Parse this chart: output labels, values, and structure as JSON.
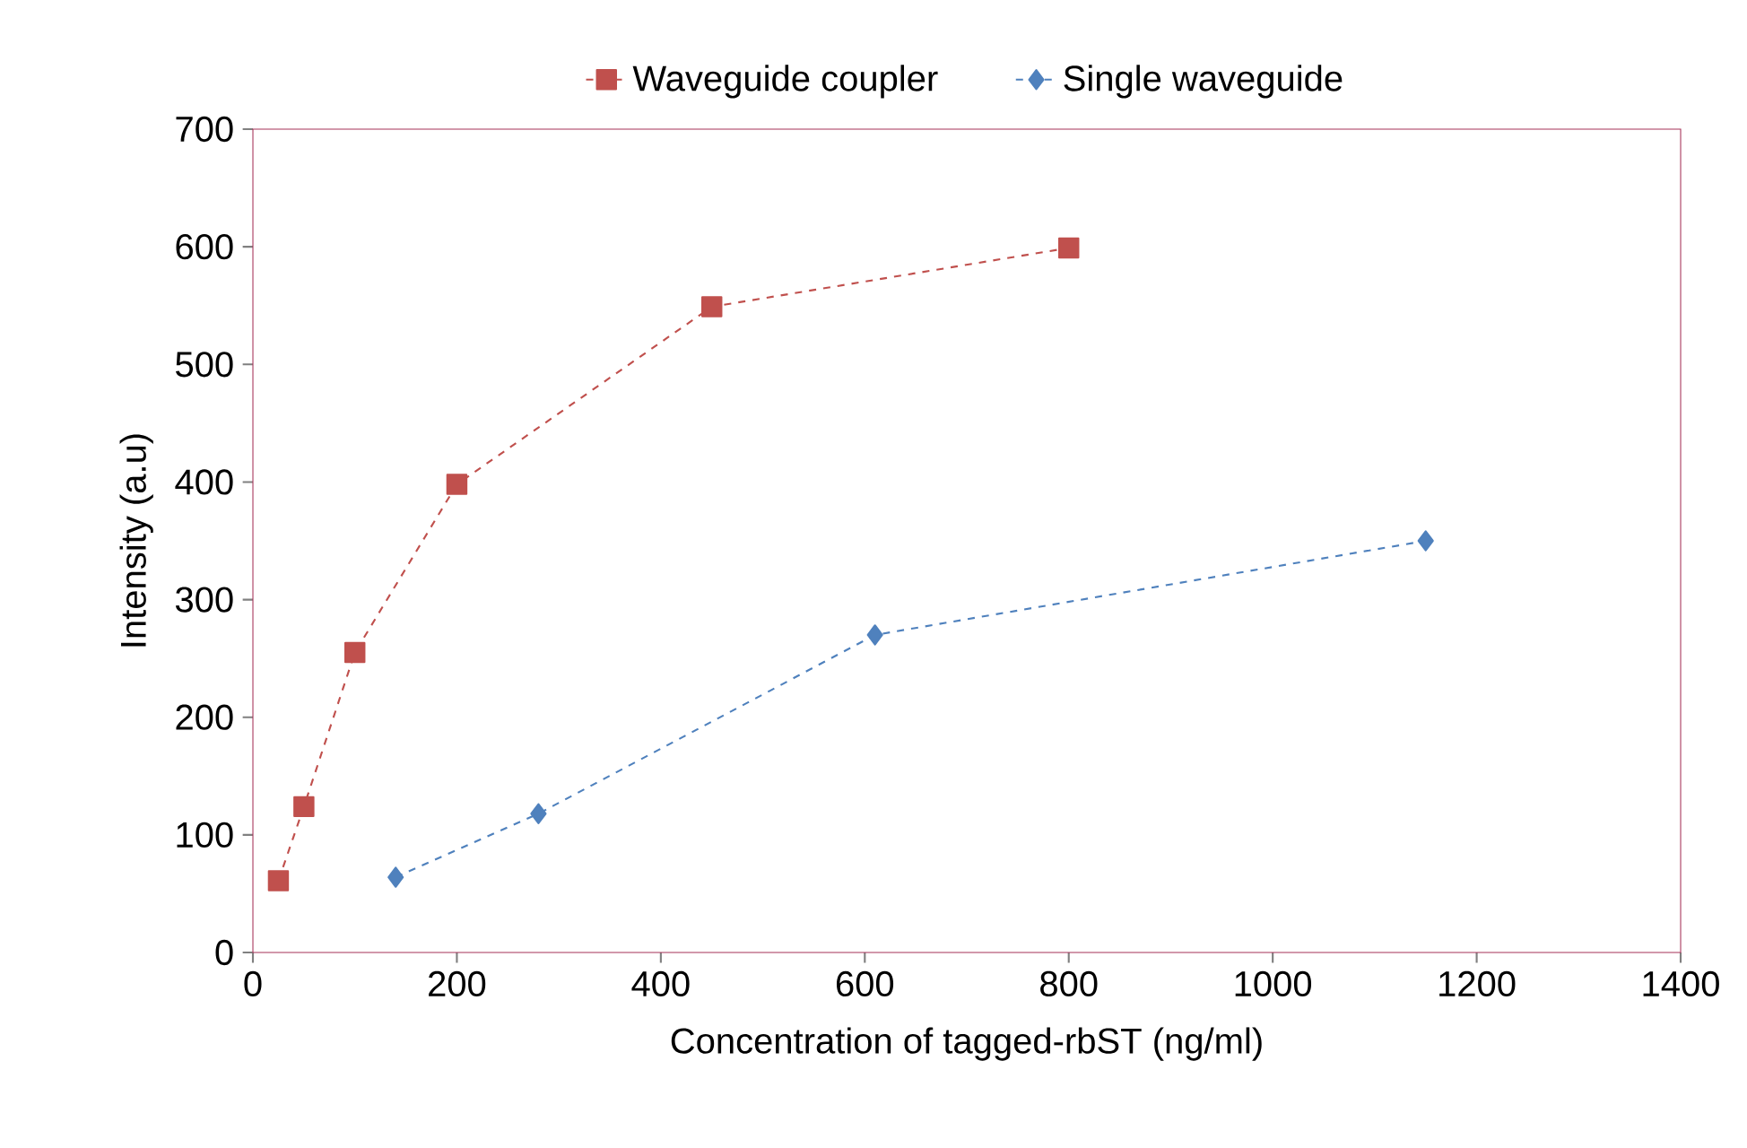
{
  "chart_data": {
    "type": "line",
    "xlabel": "Concentration of tagged-rbST (ng/ml)",
    "ylabel": "Intensity (a.u)",
    "xlim": [
      0,
      1400
    ],
    "xticks": [
      0,
      200,
      400,
      600,
      800,
      1000,
      1200,
      1400
    ],
    "ylim": [
      0,
      700
    ],
    "yticks": [
      0,
      100,
      200,
      300,
      400,
      500,
      600,
      700
    ],
    "grid": false,
    "legend": "top",
    "line_style": "dashed",
    "series": [
      {
        "name": "Waveguide coupler",
        "color": "#c0504d",
        "marker": "square",
        "x": [
          25,
          50,
          100,
          200,
          450,
          800
        ],
        "values": [
          61,
          124,
          255,
          398,
          549,
          599
        ]
      },
      {
        "name": "Single waveguide",
        "color": "#4f81bd",
        "marker": "diamond",
        "x": [
          140,
          280,
          610,
          1150
        ],
        "values": [
          64,
          118,
          270,
          350
        ]
      }
    ]
  }
}
